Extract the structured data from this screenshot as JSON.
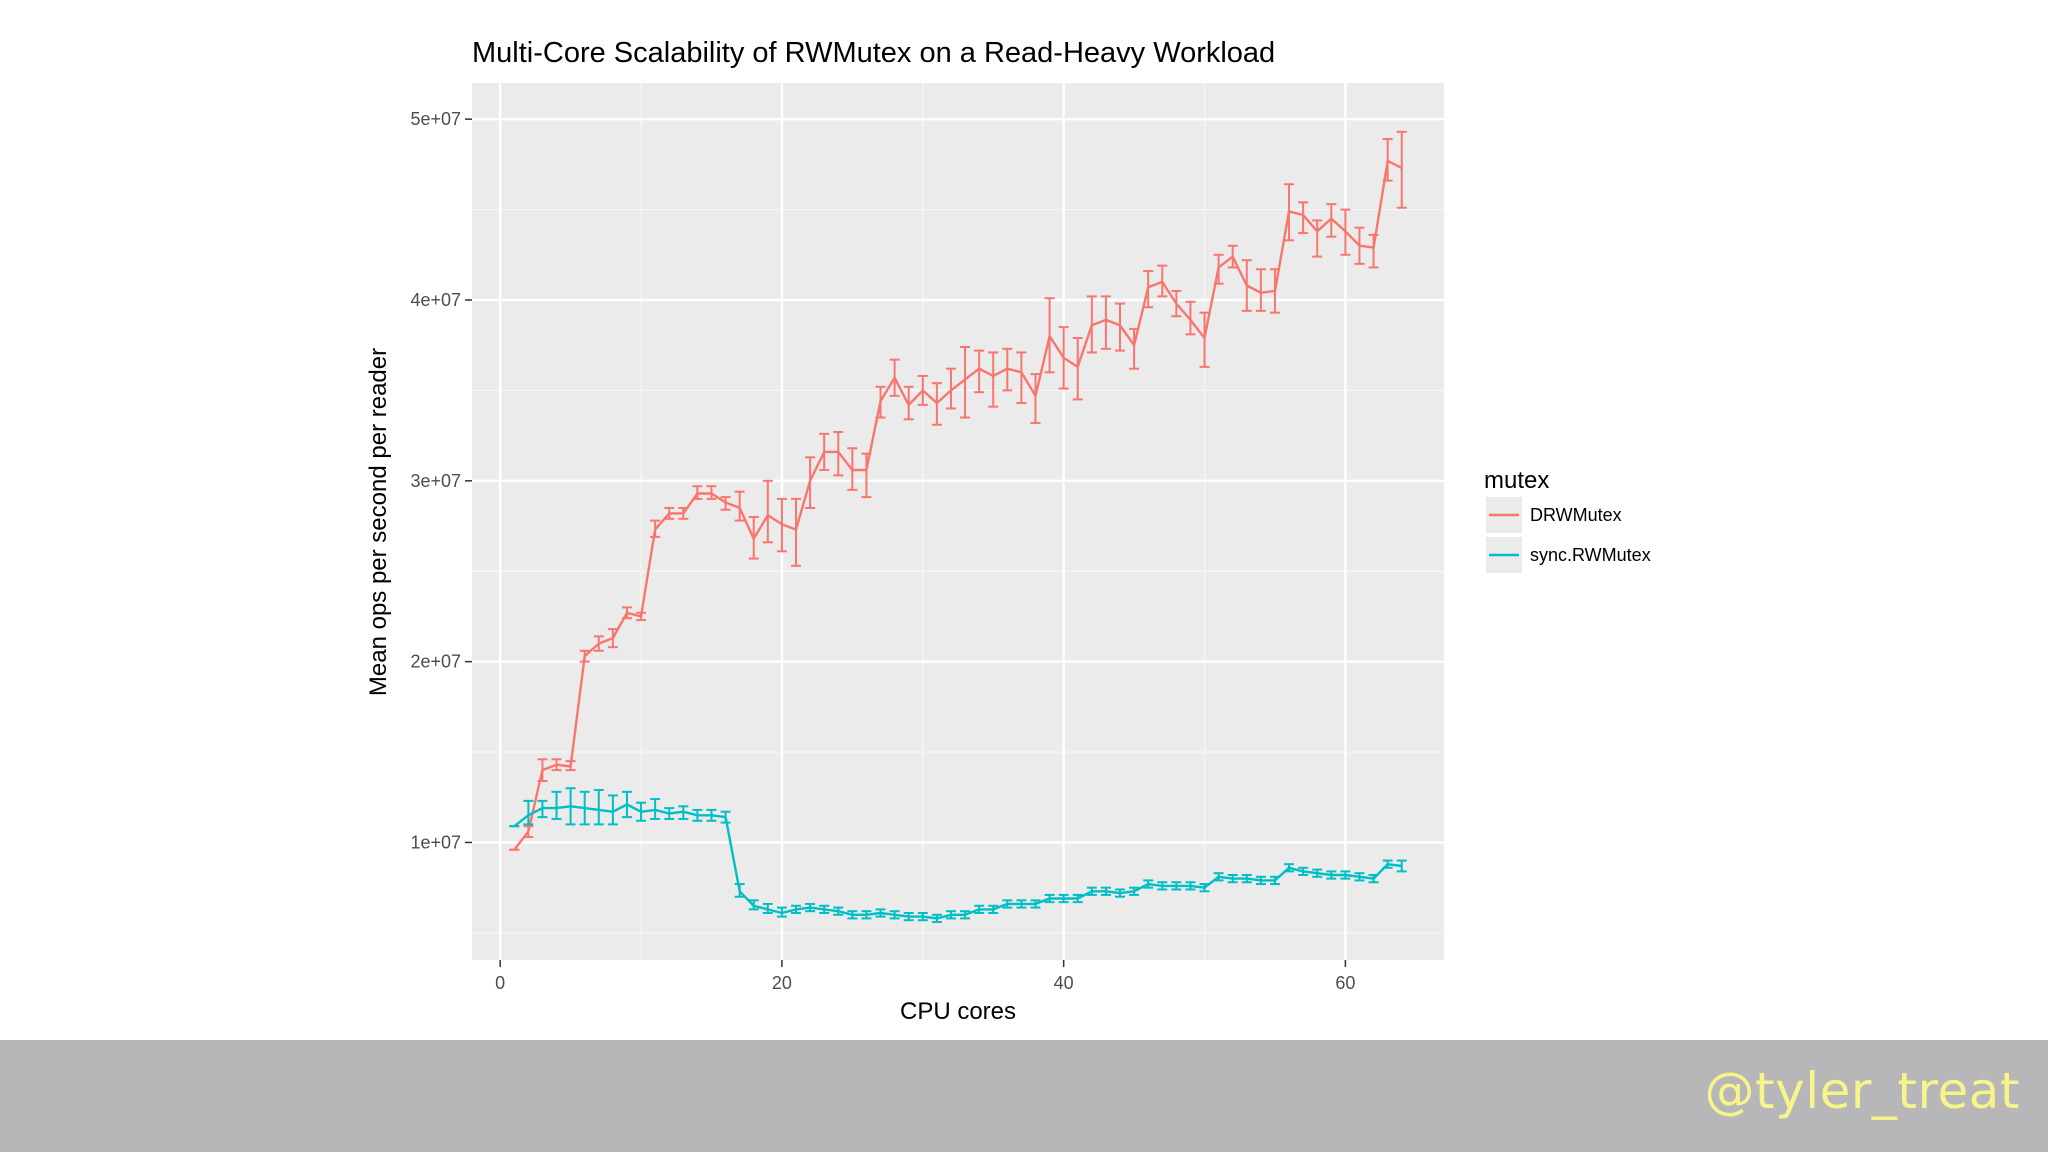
{
  "slide": {
    "footer_handle": "@tyler_treat",
    "footer_bg": "#b7b6b9",
    "footer_text_color": "#f7f58a"
  },
  "chart_data": {
    "type": "line",
    "title": "Multi-Core Scalability of RWMutex on a Read-Heavy Workload",
    "xlabel": "CPU cores",
    "ylabel": "Mean ops per second per reader",
    "xlim": [
      -2,
      67
    ],
    "ylim": [
      3500000,
      52000000
    ],
    "x_ticks": [
      0,
      20,
      40,
      60
    ],
    "x_tick_labels": [
      "0",
      "20",
      "40",
      "60"
    ],
    "y_ticks": [
      10000000,
      20000000,
      30000000,
      40000000,
      50000000
    ],
    "y_tick_labels": [
      "1e+07",
      "2e+07",
      "3e+07",
      "4e+07",
      "5e+07"
    ],
    "grid": true,
    "panel_bg": "#ebebeb",
    "legend": {
      "title": "mutex",
      "position": "right"
    },
    "x": [
      1,
      2,
      3,
      4,
      5,
      6,
      7,
      8,
      9,
      10,
      11,
      12,
      13,
      14,
      15,
      16,
      17,
      18,
      19,
      20,
      21,
      22,
      23,
      24,
      25,
      26,
      27,
      28,
      29,
      30,
      31,
      32,
      33,
      34,
      35,
      36,
      37,
      38,
      39,
      40,
      41,
      42,
      43,
      44,
      45,
      46,
      47,
      48,
      49,
      50,
      51,
      52,
      53,
      54,
      55,
      56,
      57,
      58,
      59,
      60,
      61,
      62,
      63,
      64
    ],
    "series": [
      {
        "name": "DRWMutex",
        "color": "#f8766d",
        "values": [
          9600000,
          10600000,
          14000000,
          14300000,
          14200000,
          20300000,
          21000000,
          21300000,
          22700000,
          22500000,
          27300000,
          28200000,
          28200000,
          29300000,
          29300000,
          28800000,
          28500000,
          26800000,
          28100000,
          27600000,
          27300000,
          30000000,
          31600000,
          31600000,
          30600000,
          30600000,
          34400000,
          35700000,
          34200000,
          35000000,
          34300000,
          35000000,
          35600000,
          36200000,
          35800000,
          36200000,
          36000000,
          34700000,
          38000000,
          36800000,
          36300000,
          38600000,
          38900000,
          38600000,
          37500000,
          40700000,
          41000000,
          39800000,
          38900000,
          37900000,
          41800000,
          42400000,
          40800000,
          40400000,
          40500000,
          44900000,
          44700000,
          43800000,
          44500000,
          43800000,
          43000000,
          42900000,
          47700000,
          47300000
        ],
        "error_low": [
          9600000,
          10300000,
          13400000,
          14000000,
          14000000,
          20000000,
          20600000,
          20800000,
          22400000,
          22300000,
          26900000,
          27900000,
          27900000,
          29000000,
          29000000,
          28400000,
          27800000,
          25700000,
          26600000,
          26100000,
          25300000,
          28500000,
          30600000,
          30300000,
          29500000,
          29100000,
          33500000,
          34700000,
          33400000,
          34200000,
          33100000,
          34000000,
          33500000,
          34900000,
          34100000,
          35000000,
          34300000,
          33200000,
          36000000,
          35100000,
          34500000,
          37100000,
          37300000,
          37200000,
          36200000,
          39600000,
          40200000,
          39100000,
          38100000,
          36300000,
          40900000,
          41800000,
          39400000,
          39400000,
          39300000,
          43300000,
          43700000,
          42400000,
          43500000,
          42500000,
          42000000,
          41800000,
          46600000,
          45100000
        ],
        "error_high": [
          9600000,
          10900000,
          14600000,
          14600000,
          14500000,
          20600000,
          21400000,
          21800000,
          23000000,
          22700000,
          27800000,
          28500000,
          28500000,
          29700000,
          29700000,
          29100000,
          29400000,
          28000000,
          30000000,
          29000000,
          29000000,
          31300000,
          32600000,
          32700000,
          31800000,
          31500000,
          35200000,
          36700000,
          35200000,
          35800000,
          35400000,
          36200000,
          37400000,
          37200000,
          37100000,
          37300000,
          37100000,
          35900000,
          40100000,
          38500000,
          37900000,
          40200000,
          40200000,
          39800000,
          38400000,
          41600000,
          41900000,
          40500000,
          39900000,
          39300000,
          42500000,
          43000000,
          42200000,
          41700000,
          41700000,
          46400000,
          45400000,
          44400000,
          45300000,
          45000000,
          44000000,
          43600000,
          48900000,
          49300000
        ]
      },
      {
        "name": "sync.RWMutex",
        "color": "#00bfc4",
        "values": [
          10900000,
          11500000,
          11900000,
          11900000,
          12000000,
          11900000,
          11800000,
          11700000,
          12100000,
          11700000,
          11800000,
          11600000,
          11700000,
          11500000,
          11500000,
          11400000,
          7300000,
          6500000,
          6300000,
          6100000,
          6300000,
          6400000,
          6300000,
          6200000,
          6000000,
          6000000,
          6100000,
          6000000,
          5900000,
          5900000,
          5800000,
          6000000,
          6000000,
          6300000,
          6300000,
          6600000,
          6600000,
          6600000,
          6900000,
          6900000,
          6900000,
          7300000,
          7300000,
          7200000,
          7300000,
          7700000,
          7600000,
          7600000,
          7600000,
          7500000,
          8100000,
          8000000,
          8000000,
          7900000,
          7900000,
          8600000,
          8400000,
          8300000,
          8200000,
          8200000,
          8100000,
          8000000,
          8800000,
          8700000
        ],
        "error_low": [
          10900000,
          11000000,
          11400000,
          11300000,
          11000000,
          11000000,
          11000000,
          11000000,
          11400000,
          11200000,
          11300000,
          11300000,
          11300000,
          11200000,
          11200000,
          11100000,
          7000000,
          6300000,
          6100000,
          5900000,
          6100000,
          6200000,
          6100000,
          6000000,
          5800000,
          5800000,
          5900000,
          5800000,
          5700000,
          5700000,
          5600000,
          5800000,
          5800000,
          6100000,
          6100000,
          6400000,
          6400000,
          6400000,
          6700000,
          6700000,
          6700000,
          7100000,
          7100000,
          7000000,
          7100000,
          7500000,
          7400000,
          7400000,
          7400000,
          7300000,
          7900000,
          7800000,
          7800000,
          7700000,
          7700000,
          8400000,
          8200000,
          8100000,
          8000000,
          8000000,
          7900000,
          7800000,
          8600000,
          8400000
        ],
        "error_high": [
          10900000,
          12300000,
          12300000,
          12800000,
          13000000,
          12800000,
          12900000,
          12600000,
          12800000,
          12200000,
          12400000,
          11900000,
          12000000,
          11800000,
          11800000,
          11700000,
          7700000,
          6800000,
          6600000,
          6400000,
          6500000,
          6600000,
          6500000,
          6400000,
          6200000,
          6200000,
          6300000,
          6200000,
          6100000,
          6100000,
          6000000,
          6200000,
          6200000,
          6500000,
          6500000,
          6800000,
          6800000,
          6800000,
          7100000,
          7100000,
          7100000,
          7500000,
          7500000,
          7400000,
          7500000,
          7900000,
          7800000,
          7800000,
          7800000,
          7700000,
          8300000,
          8200000,
          8200000,
          8100000,
          8100000,
          8800000,
          8600000,
          8500000,
          8400000,
          8400000,
          8300000,
          8200000,
          9000000,
          9000000
        ]
      }
    ]
  }
}
